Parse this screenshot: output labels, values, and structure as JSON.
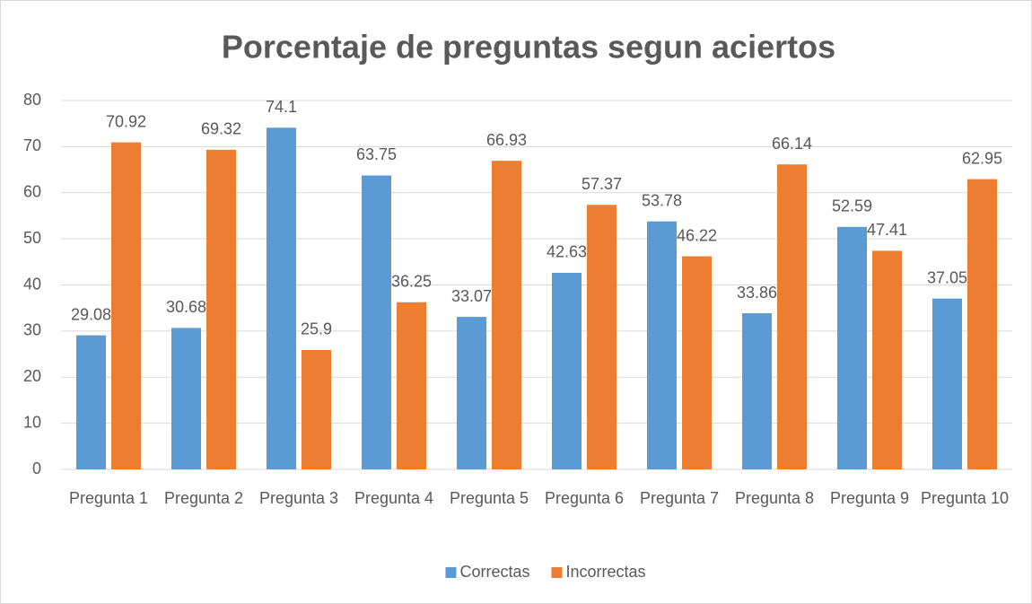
{
  "chart_data": {
    "type": "bar",
    "title": "Porcentaje de preguntas segun aciertos",
    "categories": [
      "Pregunta 1",
      "Pregunta 2",
      "Pregunta 3",
      "Pregunta 4",
      "Pregunta 5",
      "Pregunta 6",
      "Pregunta 7",
      "Pregunta 8",
      "Pregunta 9",
      "Pregunta 10"
    ],
    "series": [
      {
        "name": "Correctas",
        "color": "#5b9bd5",
        "values": [
          29.08,
          30.68,
          74.1,
          63.75,
          33.07,
          42.63,
          53.78,
          33.86,
          52.59,
          37.05
        ]
      },
      {
        "name": "Incorrectas",
        "color": "#ed7d31",
        "values": [
          70.92,
          69.32,
          25.9,
          36.25,
          66.93,
          57.37,
          46.22,
          66.14,
          47.41,
          62.95
        ]
      }
    ],
    "ylim": [
      0,
      80
    ],
    "yticks": [
      0,
      10,
      20,
      30,
      40,
      50,
      60,
      70,
      80
    ],
    "grid": true,
    "legend": "bottom"
  }
}
